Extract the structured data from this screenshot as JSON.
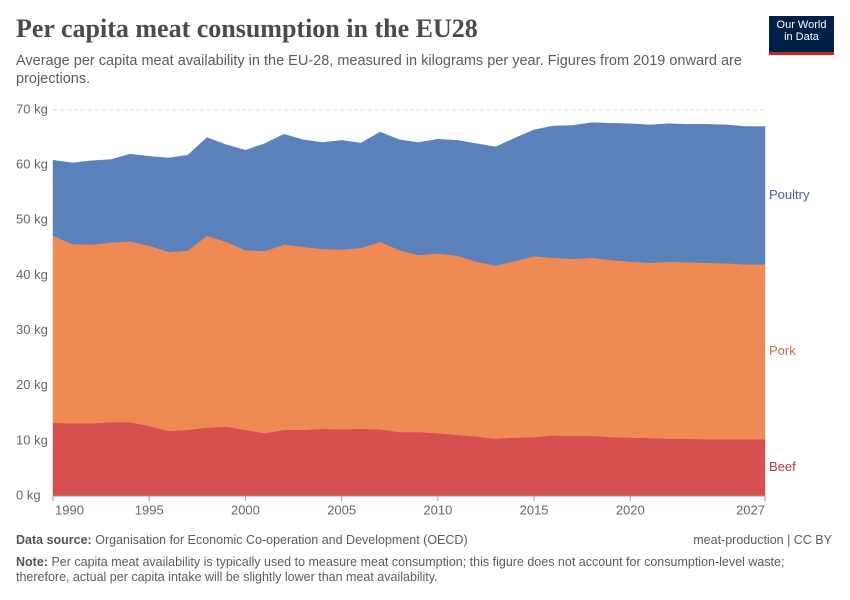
{
  "chart_data": {
    "type": "stacked_area",
    "title": "Per capita meat consumption in the EU28",
    "subtitle": "Average per capita meat availability in the EU-28, measured in kilograms per year. Figures from 2019 onward are projections.",
    "logo": [
      "Our World",
      "in Data"
    ],
    "source_label": "Data source:",
    "source": "Organisation for Economic Co-operation and Development (OECD)",
    "license": "meat-production | CC BY",
    "note_label": "Note:",
    "note": "Per capita meat availability is typically used to measure meat consumption; this figure does not account for consumption-level waste; therefore, actual per capita intake will be slightly lower than meat availability.",
    "x": [
      1990,
      1991,
      1992,
      1993,
      1994,
      1995,
      1996,
      1997,
      1998,
      1999,
      2000,
      2001,
      2002,
      2003,
      2004,
      2005,
      2006,
      2007,
      2008,
      2009,
      2010,
      2011,
      2012,
      2013,
      2014,
      2015,
      2016,
      2017,
      2018,
      2019,
      2020,
      2021,
      2022,
      2023,
      2024,
      2025,
      2026,
      2027
    ],
    "series": [
      {
        "name": "Beef",
        "color": "#d5504f",
        "values": [
          13.3,
          13.2,
          13.2,
          13.4,
          13.4,
          12.7,
          11.8,
          12.0,
          12.4,
          12.6,
          12.0,
          11.4,
          12.0,
          12.0,
          12.2,
          12.1,
          12.2,
          12.1,
          11.6,
          11.6,
          11.4,
          11.1,
          10.8,
          10.4,
          10.6,
          10.7,
          11.0,
          10.9,
          10.9,
          10.7,
          10.6,
          10.5,
          10.4,
          10.4,
          10.3,
          10.3,
          10.3,
          10.3
        ]
      },
      {
        "name": "Pork",
        "color": "#f08a55",
        "values": [
          33.9,
          32.5,
          32.4,
          32.6,
          32.8,
          32.7,
          32.5,
          32.5,
          34.8,
          33.5,
          32.6,
          33.0,
          33.6,
          33.2,
          32.6,
          32.6,
          32.8,
          34.0,
          33.0,
          32.1,
          32.6,
          32.5,
          31.7,
          31.4,
          32.0,
          32.8,
          32.2,
          32.1,
          32.3,
          32.1,
          31.9,
          31.8,
          32.1,
          32.0,
          32.0,
          31.9,
          31.7,
          31.7
        ]
      },
      {
        "name": "Poultry",
        "color": "#5b81bb",
        "values": [
          13.7,
          14.7,
          15.2,
          15.0,
          15.8,
          16.2,
          17.0,
          17.3,
          17.8,
          17.6,
          18.1,
          19.5,
          20.0,
          19.4,
          19.3,
          19.8,
          19.0,
          19.9,
          20.0,
          20.4,
          20.7,
          20.9,
          21.4,
          21.5,
          22.3,
          22.9,
          23.9,
          24.2,
          24.5,
          24.8,
          25.0,
          25.0,
          25.0,
          25.0,
          25.1,
          25.1,
          25.0,
          25.0
        ]
      }
    ],
    "xlim": [
      1990,
      2027
    ],
    "xticks": [
      1990,
      1995,
      2000,
      2005,
      2010,
      2015,
      2020,
      2027
    ],
    "ylim": [
      0,
      70
    ],
    "yticks": [
      {
        "value": 0,
        "label": "0 kg"
      },
      {
        "value": 10,
        "label": "10 kg"
      },
      {
        "value": 20,
        "label": "20 kg"
      },
      {
        "value": 30,
        "label": "30 kg"
      },
      {
        "value": 40,
        "label": "40 kg"
      },
      {
        "value": 50,
        "label": "50 kg"
      },
      {
        "value": 60,
        "label": "60 kg"
      },
      {
        "value": 70,
        "label": "70 kg"
      }
    ],
    "grid": true
  }
}
